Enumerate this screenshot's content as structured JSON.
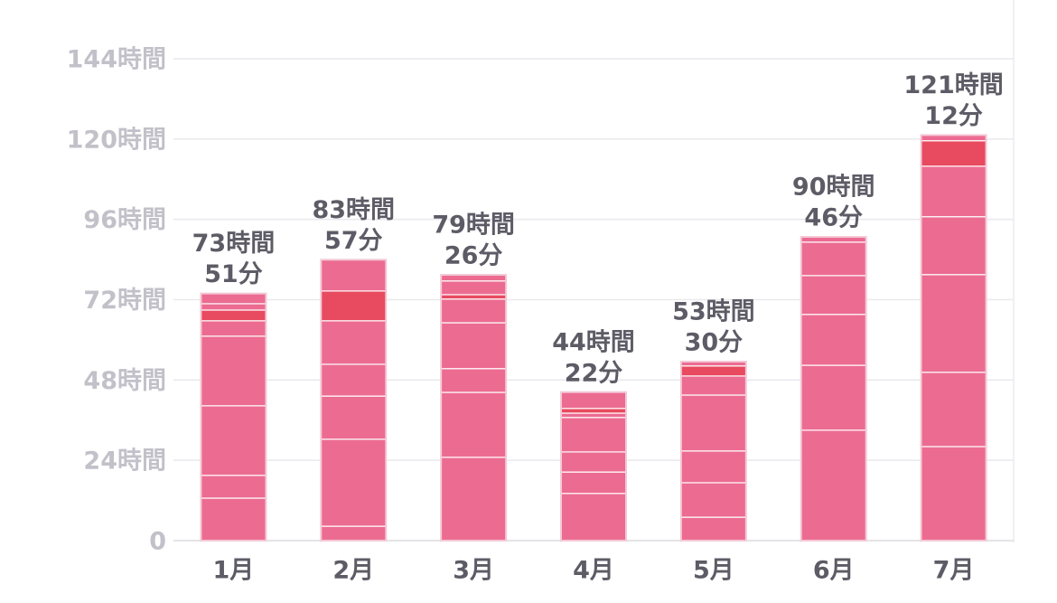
{
  "chart_data": {
    "type": "stacked-bar",
    "categories": [
      "1月",
      "2月",
      "3月",
      "4月",
      "5月",
      "6月",
      "7月"
    ],
    "values": [
      73.85,
      83.95,
      79.43,
      44.37,
      53.5,
      90.77,
      121.2
    ],
    "value_labels": [
      [
        "73時間",
        "51分"
      ],
      [
        "83時間",
        "57分"
      ],
      [
        "79時間",
        "26分"
      ],
      [
        "44時間",
        "22分"
      ],
      [
        "53時間",
        "30分"
      ],
      [
        "90時間",
        "46分"
      ],
      [
        "121時間",
        "12分"
      ]
    ],
    "stacks": [
      {
        "values": [
          12.7,
          6.8,
          20.8,
          20.8,
          4.6,
          3.2,
          1.9,
          3.05
        ],
        "colors": [
          "#ec6b91",
          "#ec6b91",
          "#ec6b91",
          "#ec6b91",
          "#ec6b91",
          "#e84a5f",
          "#ec6b91",
          "#ec6b91"
        ]
      },
      {
        "values": [
          4.3,
          26,
          12.9,
          9.5,
          13,
          8.9,
          9.35
        ],
        "colors": [
          "#ec6b91",
          "#ec6b91",
          "#ec6b91",
          "#ec6b91",
          "#ec6b91",
          "#e84a5f",
          "#ec6b91"
        ]
      },
      {
        "values": [
          24.9,
          19.4,
          7.1,
          13.7,
          7.1,
          1.3,
          4.1,
          1.83
        ],
        "colors": [
          "#ec6b91",
          "#ec6b91",
          "#ec6b91",
          "#ec6b91",
          "#ec6b91",
          "#e84a5f",
          "#ec6b91",
          "#ec6b91"
        ]
      },
      {
        "values": [
          14.1,
          6.4,
          6,
          10.3,
          1.3,
          1.4,
          4.87
        ],
        "colors": [
          "#ec6b91",
          "#ec6b91",
          "#ec6b91",
          "#ec6b91",
          "#ec6b91",
          "#e84a5f",
          "#ec6b91"
        ]
      },
      {
        "values": [
          7,
          10.3,
          9.5,
          16.7,
          5.7,
          3,
          1.3
        ],
        "colors": [
          "#ec6b91",
          "#ec6b91",
          "#ec6b91",
          "#ec6b91",
          "#ec6b91",
          "#e84a5f",
          "#ec6b91"
        ]
      },
      {
        "values": [
          33,
          19.4,
          15.2,
          11.6,
          10,
          1.57
        ],
        "colors": [
          "#ec6b91",
          "#ec6b91",
          "#ec6b91",
          "#ec6b91",
          "#ec6b91",
          "#ec6b91"
        ]
      },
      {
        "values": [
          28.1,
          22.2,
          29.2,
          17.3,
          15.1,
          7.6,
          1.7
        ],
        "colors": [
          "#ec6b91",
          "#ec6b91",
          "#ec6b91",
          "#ec6b91",
          "#ec6b91",
          "#e84a5f",
          "#ec6b91"
        ]
      }
    ],
    "ylim": [
      0,
      144
    ],
    "yticks": [
      0,
      {
        "value": 24,
        "label": "24時間"
      },
      {
        "value": 48,
        "label": "48時間"
      },
      {
        "value": 72,
        "label": "72時間"
      },
      {
        "value": 96,
        "label": "96時間"
      },
      {
        "value": 120,
        "label": "120時間"
      },
      {
        "value": 144,
        "label": "144時間"
      }
    ],
    "grid": true
  }
}
